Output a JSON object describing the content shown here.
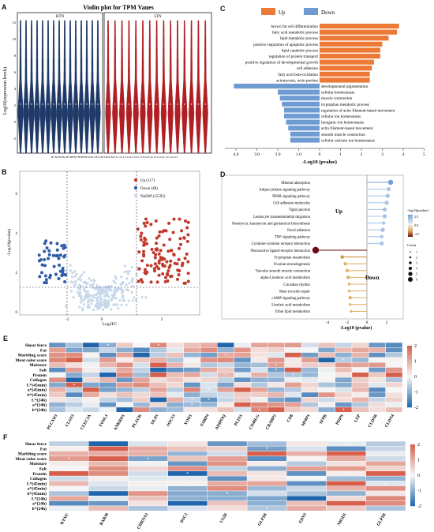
{
  "panels": {
    "A": {
      "label": "A",
      "title": "Violin plot for TPM Vaues",
      "ylabel": "Log10(expression levels)",
      "groups": [
        "HTN",
        "LTN"
      ],
      "yticks": [
        "12",
        "10",
        "8",
        "6",
        "4",
        "2",
        "0",
        "-2"
      ],
      "xticks": "B1 B2 B3 B4 B5 B6 B7 B8 B9 B10 B11 B12 B13 B14 B15 L1 L2 L3 L4 L5 L6 L7 L8 L9 L10 L11 L12 L13 L14 L15",
      "colors": {
        "htn": "#1f3a68",
        "ltn": "#b01f24"
      }
    },
    "B": {
      "label": "B",
      "ylabel": "-Log10(pvalue)",
      "xlabel": "Log2FC",
      "legend": [
        "Up (117)",
        "Down (48)",
        "NoDiff (15595)"
      ],
      "xticks": [
        "-2",
        "0",
        "2"
      ],
      "yticks": [
        "0",
        "2",
        "4",
        "6"
      ],
      "colors": {
        "up": "#c0392b",
        "down": "#2e5ca8",
        "nodiff": "#c6d8ea"
      }
    },
    "C": {
      "label": "C",
      "legend_up": "Up",
      "legend_down": "Down",
      "xlabel": "-Log10 (pvalue)",
      "xticks": [
        "4.0",
        "3.0",
        "2.0",
        "1.0",
        "0",
        "1",
        "2",
        "3",
        "4",
        "5"
      ],
      "colors": {
        "up": "#ec7936",
        "down": "#6e9bd1"
      }
    },
    "D": {
      "label": "D",
      "xlabel": "-Log10 (pvalue)",
      "xticks": [
        "-4",
        "-2",
        "0",
        "2"
      ],
      "up_label": "Up",
      "down_label": "Down",
      "colorbar_title": "-log10(pvalue)",
      "colorbar_ticks": [
        "2.5",
        "0.0",
        "-2.5"
      ],
      "count_title": "Count",
      "count_ticks": [
        "1",
        "2",
        "3",
        "4",
        "5",
        "6"
      ],
      "terms": [
        "Mineral absorption",
        "Adipocytokine signaling pathway",
        "PPAR signaling pathway",
        "Cell adhesion molecules",
        "Tight junction",
        "Leukocyte transendothelial migration",
        "Neomycin, kanamycin and gentamicin biosynthesis",
        "Focal adhesion",
        "TNF signaling pathway",
        "Cytokine-cytokine receptor interaction",
        "Neuroactive ligand-receptor interaction",
        "Tryptophan metabolism",
        "Ovarian steroidogenesis",
        "Vascular smooth muscle contraction",
        "alpha-Linolenic acid metabolism",
        "Circadian rhythm",
        "Base excision repair",
        "cAMP signaling pathway",
        "Linoleic acid metabolism",
        "Ether lipid metabolism"
      ]
    },
    "E": {
      "label": "E",
      "rows": [
        "Shear force",
        "Fat",
        "Marbling score",
        "Meat color score",
        "Moisture",
        "Salt",
        "Protein",
        "Collagen",
        "L*(45min)",
        "a*(45min)",
        "b*(45min)",
        "L*(24h)",
        "a*(24h)",
        "b*(24h)"
      ],
      "cols": [
        "PLCXD3",
        "CLSN3",
        "CLEC3A",
        "FOSL1",
        "ANKRD1",
        "PLAUR",
        "OLIN",
        "SOCS3",
        "YOD1",
        "FABP4",
        "ADIPOQ",
        "PLIN1",
        "CD40LG",
        "CRABP2",
        "CD8",
        "MMP1",
        "SFPB",
        "PDPN",
        "LEP",
        "CLDN6",
        "CLDN4"
      ],
      "scale_ticks": [
        "2",
        "1",
        "0",
        "-1",
        "-2"
      ]
    },
    "F": {
      "label": "F",
      "rows": [
        "Shear force",
        "Fat",
        "Marbling score",
        "Meat color score",
        "Moisture",
        "Salt",
        "Protein",
        "Collagen",
        "L*(45min)",
        "a*(45min)",
        "b*(45min)",
        "L*(24h)",
        "a*(24h)",
        "b*(24h)"
      ],
      "cols": [
        "KYNU",
        "RAB38",
        "CHRNA3",
        "DSC2",
        "US2R",
        "GLP1R",
        "EDN3",
        "NR1D1",
        "GLP1R"
      ],
      "scale_ticks": [
        "2",
        "1",
        "0",
        "-1",
        "-2"
      ]
    }
  },
  "chart_data": [
    {
      "type": "bar",
      "panel": "C",
      "categories": [
        "brown fat cell differentiation",
        "fatty acid metabolic process",
        "lipid metabolic process",
        "positive regulation of apoptotic process",
        "lipid catabolic process",
        "regulation of protein transport",
        "positive regulation of developmental growth",
        "cell adhesion",
        "fatty acid beta-oxidation",
        "actomyosin, actin portion",
        "developmental pigmentation",
        "cellular homeostasis",
        "muscle contraction",
        "tryptophan metabolic process",
        "regulation of actin filament-based movement",
        "cellular ion homeostasis",
        "inorganic ion homeostasis",
        "actin filament-based movement",
        "smooth muscle contraction",
        "cellular calcium ion homeostasis"
      ],
      "series": [
        {
          "name": "Up",
          "values": [
            3.8,
            3.7,
            3.3,
            3.0,
            2.9,
            2.9,
            2.6,
            2.5,
            2.4,
            2.4,
            null,
            null,
            null,
            null,
            null,
            null,
            null,
            null,
            null,
            null
          ]
        },
        {
          "name": "Down",
          "values": [
            null,
            null,
            null,
            null,
            null,
            null,
            null,
            null,
            null,
            null,
            4.1,
            2.0,
            1.9,
            1.8,
            1.7,
            1.7,
            1.6,
            1.5,
            1.4,
            1.4
          ]
        }
      ],
      "xlim": [
        -4.0,
        5
      ]
    },
    {
      "type": "scatter",
      "panel": "D",
      "categories": [
        "Mineral absorption",
        "Adipocytokine signaling pathway",
        "PPAR signaling pathway",
        "Cell adhesion molecules",
        "Tight junction",
        "Leukocyte transendothelial migration",
        "Neomycin, kanamycin and gentamicin biosynthesis",
        "Focal adhesion",
        "TNF signaling pathway",
        "Cytokine-cytokine receptor interaction",
        "Neuroactive ligand-receptor interaction",
        "Tryptophan metabolism",
        "Ovarian steroidogenesis",
        "Vascular smooth muscle contraction",
        "alpha-Linolenic acid metabolism",
        "Circadian rhythm",
        "Base excision repair",
        "cAMP signaling pathway",
        "Linoleic acid metabolism",
        "Ether lipid metabolism"
      ],
      "values": [
        2.4,
        2.2,
        2.1,
        2.0,
        1.8,
        1.8,
        1.7,
        1.6,
        1.5,
        1.5,
        -5.2,
        -2.5,
        -2.2,
        -2.0,
        -1.9,
        -1.8,
        -1.8,
        -1.7,
        -1.7,
        -1.6
      ],
      "counts": [
        4,
        3,
        3,
        3,
        3,
        3,
        2,
        3,
        2,
        3,
        6,
        2,
        2,
        2,
        2,
        1,
        1,
        2,
        1,
        1
      ],
      "xlim": [
        -6,
        3
      ]
    }
  ]
}
